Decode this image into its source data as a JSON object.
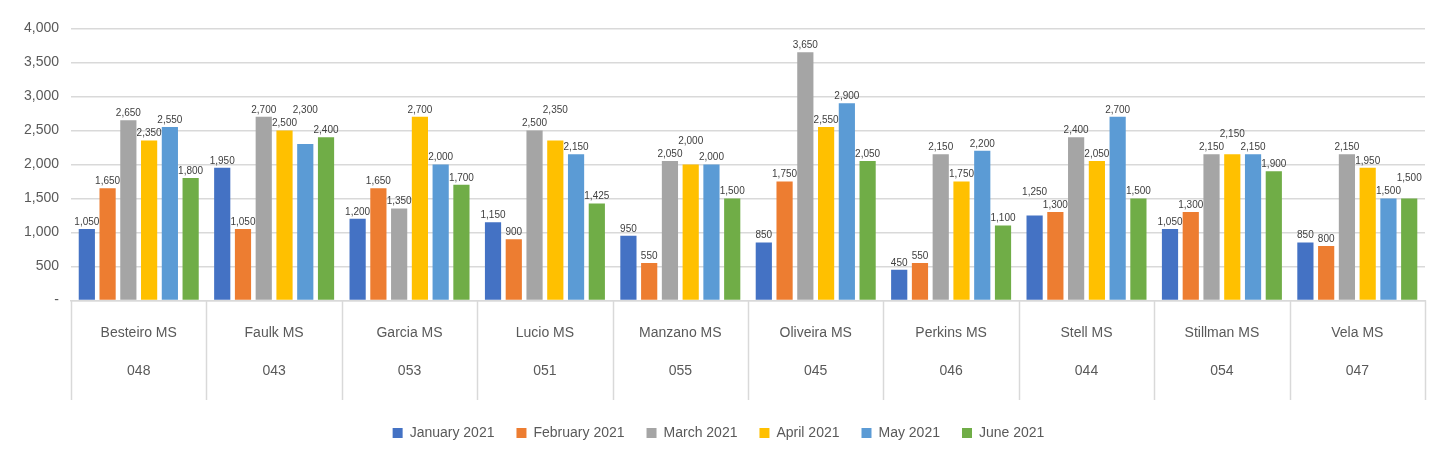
{
  "chart_data": {
    "type": "bar",
    "categories": [
      "Besteiro MS\n048",
      "Faulk MS\n043",
      "Garcia MS\n053",
      "Lucio MS\n051",
      "Manzano MS\n055",
      "Oliveira MS\n045",
      "Perkins MS\n046",
      "Stell MS\n044",
      "Stillman MS\n054",
      "Vela MS\n047"
    ],
    "series": [
      {
        "name": "January 2021",
        "color": "#4472c4",
        "values": [
          1050,
          1950,
          1200,
          1150,
          950,
          850,
          450,
          1250,
          1050,
          850
        ],
        "value_labels": [
          "1,050",
          "1,950",
          "1,200",
          "1,150",
          "950",
          "850",
          "450",
          "1,250",
          "1,050",
          "850"
        ]
      },
      {
        "name": "February 2021",
        "color": "#ed7d31",
        "values": [
          1650,
          1050,
          1650,
          900,
          550,
          1750,
          550,
          1300,
          1300,
          800
        ],
        "value_labels": [
          "1,650",
          "1,050",
          "1,650",
          "900",
          "550",
          "1,750",
          "550",
          "1,300",
          "1,300",
          "800"
        ]
      },
      {
        "name": "March 2021",
        "color": "#a5a5a5",
        "values": [
          2650,
          2700,
          1350,
          2500,
          2050,
          3650,
          2150,
          2400,
          2150,
          2150
        ],
        "value_labels": [
          "2,650",
          "2,700",
          "1,350",
          "2,500",
          "2,050",
          "3,650",
          "2,150",
          "2,400",
          "2,150",
          "2,150"
        ]
      },
      {
        "name": "April 2021",
        "color": "#ffc000",
        "values": [
          2350,
          2500,
          2700,
          2350,
          2000,
          2550,
          1750,
          2050,
          2150,
          1950
        ],
        "value_labels": [
          "2,350",
          "2,500",
          "2,700",
          "2,350",
          "2,000",
          "2,550",
          "1,750",
          "2,050",
          "2,150",
          "1,950"
        ]
      },
      {
        "name": "May 2021",
        "color": "#5b9bd5",
        "values": [
          2550,
          2300,
          2000,
          2150,
          2000,
          2900,
          2200,
          2700,
          2150,
          1500
        ],
        "value_labels": [
          "2,550",
          "2,300",
          "2,000",
          "2,150",
          "2,000",
          "2,900",
          "2,200",
          "2,700",
          "2,150",
          "1,500"
        ]
      },
      {
        "name": "June 2021",
        "color": "#70ad47",
        "values": [
          1800,
          2400,
          1700,
          1425,
          1500,
          2050,
          1100,
          1500,
          1900,
          1500
        ],
        "value_labels": [
          "1,800",
          "2,400",
          "1,700",
          "1,425",
          "1,500",
          "2,050",
          "1,100",
          "1,500",
          "1,900",
          "1,500"
        ]
      }
    ],
    "ylim": [
      0,
      4000
    ],
    "yticks": [
      {
        "value": 0,
        "label": "-"
      },
      500,
      {
        "value": 1000,
        "label": "1,000"
      },
      {
        "value": 1500,
        "label": "1,500"
      },
      {
        "value": 2000,
        "label": "2,000"
      },
      {
        "value": 2500,
        "label": "2,500"
      },
      {
        "value": 3000,
        "label": "3,000"
      },
      {
        "value": 3500,
        "label": "3,500"
      },
      {
        "value": 4000,
        "label": "4,000"
      }
    ],
    "grid": "y",
    "legend": "bottom"
  }
}
